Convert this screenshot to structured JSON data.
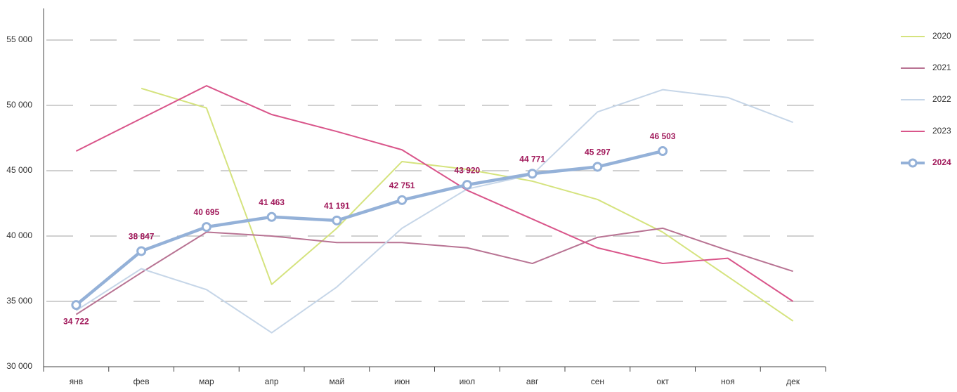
{
  "chart_data": {
    "type": "line",
    "categories": [
      "янв",
      "фев",
      "мар",
      "апр",
      "май",
      "июн",
      "июл",
      "авг",
      "сен",
      "окт",
      "ноя",
      "дек"
    ],
    "ylim": [
      30000,
      55000
    ],
    "yticks": [
      {
        "value": 30000,
        "label": "30 000"
      },
      {
        "value": 35000,
        "label": "35 000"
      },
      {
        "value": 40000,
        "label": "40 000"
      },
      {
        "value": 45000,
        "label": "45 000"
      },
      {
        "value": 50000,
        "label": "50 000"
      },
      {
        "value": 55000,
        "label": "55 000"
      }
    ],
    "grid": true,
    "legend": "right",
    "series": [
      {
        "name": "2020",
        "color": "#d5e37e",
        "values": [
          null,
          51300,
          49800,
          36300,
          40600,
          45700,
          45100,
          44200,
          42800,
          40300,
          36900,
          33500
        ]
      },
      {
        "name": "2021",
        "color": "#b87393",
        "values": [
          34000,
          37200,
          40300,
          40000,
          39500,
          39500,
          39100,
          37900,
          39900,
          40600,
          38900,
          37300
        ]
      },
      {
        "name": "2022",
        "color": "#c6d6e8",
        "values": [
          34300,
          37500,
          35900,
          32600,
          36100,
          40600,
          43600,
          44700,
          49500,
          51200,
          50600,
          48700
        ]
      },
      {
        "name": "2023",
        "color": "#d9558a",
        "values": [
          46500,
          49000,
          51500,
          49300,
          48000,
          46600,
          43500,
          41300,
          39100,
          37900,
          38300,
          35000
        ]
      },
      {
        "name": "2024",
        "color": "#94b1d8",
        "markers": true,
        "values": [
          34722,
          38847,
          40695,
          41463,
          41191,
          42751,
          43920,
          44771,
          45297,
          46503,
          null,
          null
        ],
        "value_labels": [
          "34 722",
          "38 847",
          "40 695",
          "41 463",
          "41 191",
          "42 751",
          "43 920",
          "44 771",
          "45 297",
          "46 503",
          null,
          null
        ]
      }
    ]
  }
}
